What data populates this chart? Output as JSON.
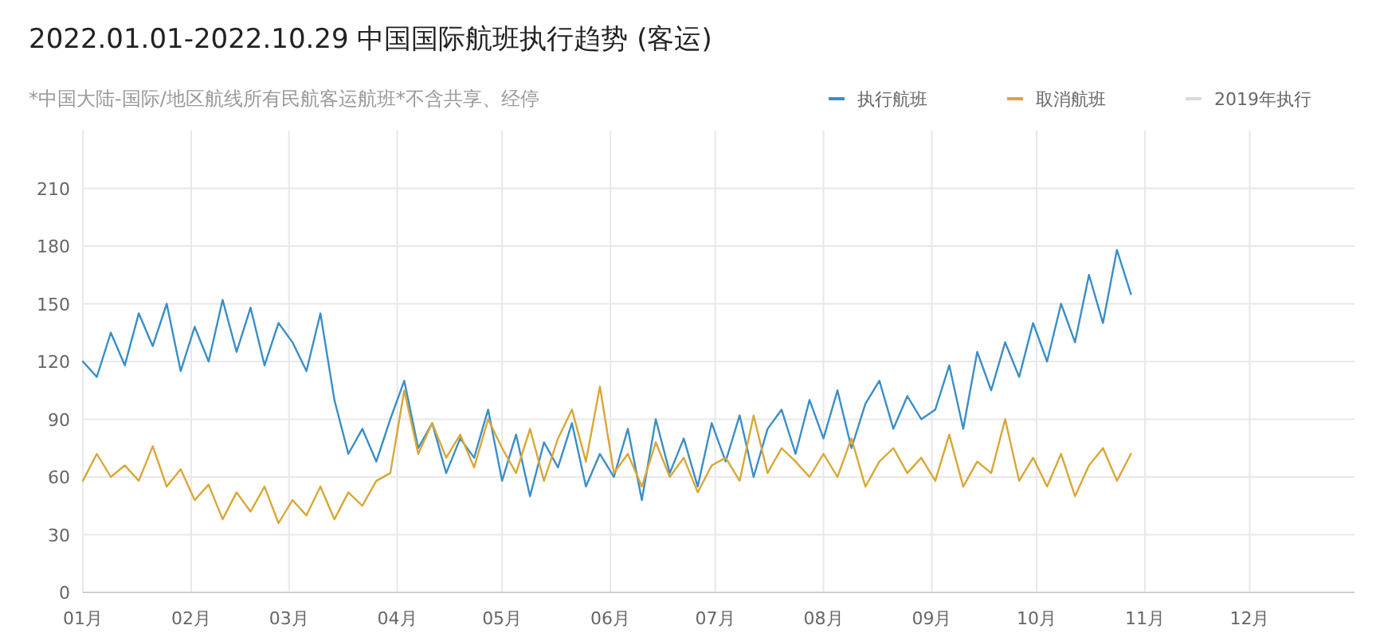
{
  "chart_data": {
    "type": "line",
    "title": "2022.01.01-2022.10.29 中国国际航班执行趋势 (客运)",
    "subtitle": "*中国大陆-国际/地区航线所有民航客运航班*不含共享、经停",
    "x": [
      "2022-01-01",
      "2022-01-05",
      "2022-01-09",
      "2022-01-13",
      "2022-01-17",
      "2022-01-21",
      "2022-01-25",
      "2022-01-29",
      "2022-02-02",
      "2022-02-06",
      "2022-02-10",
      "2022-02-14",
      "2022-02-18",
      "2022-02-22",
      "2022-02-26",
      "2022-03-02",
      "2022-03-06",
      "2022-03-10",
      "2022-03-14",
      "2022-03-18",
      "2022-03-22",
      "2022-03-26",
      "2022-03-30",
      "2022-04-03",
      "2022-04-07",
      "2022-04-11",
      "2022-04-15",
      "2022-04-19",
      "2022-04-23",
      "2022-04-27",
      "2022-05-01",
      "2022-05-05",
      "2022-05-09",
      "2022-05-13",
      "2022-05-17",
      "2022-05-21",
      "2022-05-25",
      "2022-05-29",
      "2022-06-02",
      "2022-06-06",
      "2022-06-10",
      "2022-06-14",
      "2022-06-18",
      "2022-06-22",
      "2022-06-26",
      "2022-06-30",
      "2022-07-04",
      "2022-07-08",
      "2022-07-12",
      "2022-07-16",
      "2022-07-20",
      "2022-07-24",
      "2022-07-28",
      "2022-08-01",
      "2022-08-05",
      "2022-08-09",
      "2022-08-13",
      "2022-08-17",
      "2022-08-21",
      "2022-08-25",
      "2022-08-29",
      "2022-09-02",
      "2022-09-06",
      "2022-09-10",
      "2022-09-14",
      "2022-09-18",
      "2022-09-22",
      "2022-09-26",
      "2022-09-30",
      "2022-10-04",
      "2022-10-08",
      "2022-10-12",
      "2022-10-16",
      "2022-10-20",
      "2022-10-24",
      "2022-10-28"
    ],
    "series": [
      {
        "name": "执行航班",
        "color": "#3a8ec8",
        "values": [
          120,
          112,
          135,
          118,
          145,
          128,
          150,
          115,
          138,
          120,
          152,
          125,
          148,
          118,
          140,
          130,
          115,
          145,
          100,
          72,
          85,
          68,
          90,
          110,
          75,
          88,
          62,
          80,
          70,
          95,
          58,
          82,
          50,
          78,
          65,
          88,
          55,
          72,
          60,
          85,
          48,
          90,
          62,
          80,
          55,
          88,
          68,
          92,
          60,
          85,
          95,
          72,
          100,
          80,
          105,
          75,
          98,
          110,
          85,
          102,
          90,
          95,
          118,
          85,
          125,
          105,
          130,
          112,
          140,
          120,
          150,
          130,
          165,
          140,
          178,
          155
        ]
      },
      {
        "name": "取消航班",
        "color": "#d9a735",
        "values": [
          58,
          72,
          60,
          66,
          58,
          76,
          55,
          64,
          48,
          56,
          38,
          52,
          42,
          55,
          36,
          48,
          40,
          55,
          38,
          52,
          45,
          58,
          62,
          105,
          72,
          88,
          70,
          82,
          65,
          90,
          75,
          62,
          85,
          58,
          80,
          95,
          68,
          107,
          62,
          72,
          55,
          78,
          60,
          70,
          52,
          66,
          70,
          58,
          92,
          62,
          75,
          68,
          60,
          72,
          60,
          80,
          55,
          68,
          75,
          62,
          70,
          58,
          82,
          55,
          68,
          62,
          90,
          58,
          70,
          55,
          72,
          50,
          66,
          75,
          58,
          72
        ]
      },
      {
        "name": "2019年执行",
        "color": "#d9d9d9",
        "values": [
          null,
          null,
          null,
          null,
          null,
          null,
          null,
          null,
          null,
          null,
          null,
          null,
          null,
          null,
          null,
          null,
          null,
          null,
          null,
          null,
          null,
          null,
          null,
          null,
          null,
          null,
          null,
          null,
          null,
          null,
          null,
          null,
          null,
          null,
          null,
          null,
          null,
          null,
          null,
          null,
          null,
          null,
          null,
          null,
          null,
          null,
          null,
          null,
          null,
          null,
          null,
          null,
          null,
          null,
          null,
          null,
          null,
          null,
          null,
          null,
          null,
          null,
          null,
          null,
          null,
          null,
          null,
          null,
          null,
          null,
          null,
          null,
          null,
          null,
          null,
          null
        ]
      }
    ],
    "xlim": [
      "2022-01-01",
      "2022-12-31"
    ],
    "xticks": [
      {
        "value": "2022-01-01",
        "label": "01月"
      },
      {
        "value": "2022-02-01",
        "label": "02月"
      },
      {
        "value": "2022-03-01",
        "label": "03月"
      },
      {
        "value": "2022-04-01",
        "label": "04月"
      },
      {
        "value": "2022-05-01",
        "label": "05月"
      },
      {
        "value": "2022-06-01",
        "label": "06月"
      },
      {
        "value": "2022-07-01",
        "label": "07月"
      },
      {
        "value": "2022-08-01",
        "label": "08月"
      },
      {
        "value": "2022-09-01",
        "label": "09月"
      },
      {
        "value": "2022-10-01",
        "label": "10月"
      },
      {
        "value": "2022-11-01",
        "label": "11月"
      },
      {
        "value": "2022-12-01",
        "label": "12月"
      }
    ],
    "ylim": [
      0,
      240
    ],
    "yticks": [
      0,
      30,
      60,
      90,
      120,
      150,
      180,
      210
    ],
    "grid": true,
    "legend": "top right",
    "marker": "none",
    "line_style": "solid"
  }
}
